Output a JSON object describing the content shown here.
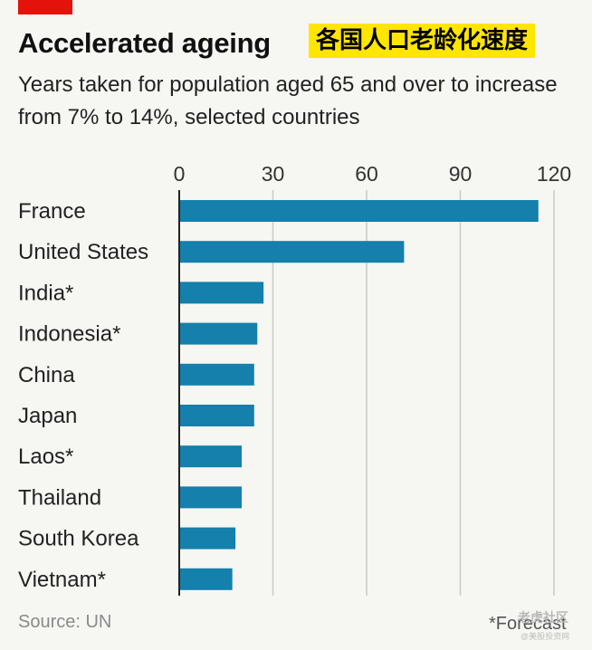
{
  "header": {
    "title": "Accelerated ageing",
    "overlay_caption": "各国人口老龄化速度",
    "subtitle": "Years taken for population aged 65 and over to increase from 7% to 14%, selected countries"
  },
  "footer": {
    "source": "Source: UN",
    "note": "*Forecast",
    "watermark": "老虎社区",
    "watermark_sub": "@美股投资网"
  },
  "colors": {
    "bar": "#1480ab",
    "accent": "#e3120b",
    "overlay_bg": "#ffe600",
    "grid": "#c9c9c9"
  },
  "chart_data": {
    "type": "bar",
    "orientation": "horizontal",
    "title": "Accelerated ageing",
    "subtitle": "Years taken for population aged 65 and over to increase from 7% to 14%, selected countries",
    "categories": [
      "France",
      "United States",
      "India*",
      "Indonesia*",
      "China",
      "Japan",
      "Laos*",
      "Thailand",
      "South Korea",
      "Vietnam*"
    ],
    "values": [
      115,
      72,
      27,
      25,
      24,
      24,
      20,
      20,
      18,
      17
    ],
    "xlim": [
      0,
      120
    ],
    "xticks": [
      0,
      30,
      60,
      90,
      120
    ],
    "xaxis_position": "top",
    "grid": true,
    "xlabel": "",
    "ylabel": ""
  }
}
